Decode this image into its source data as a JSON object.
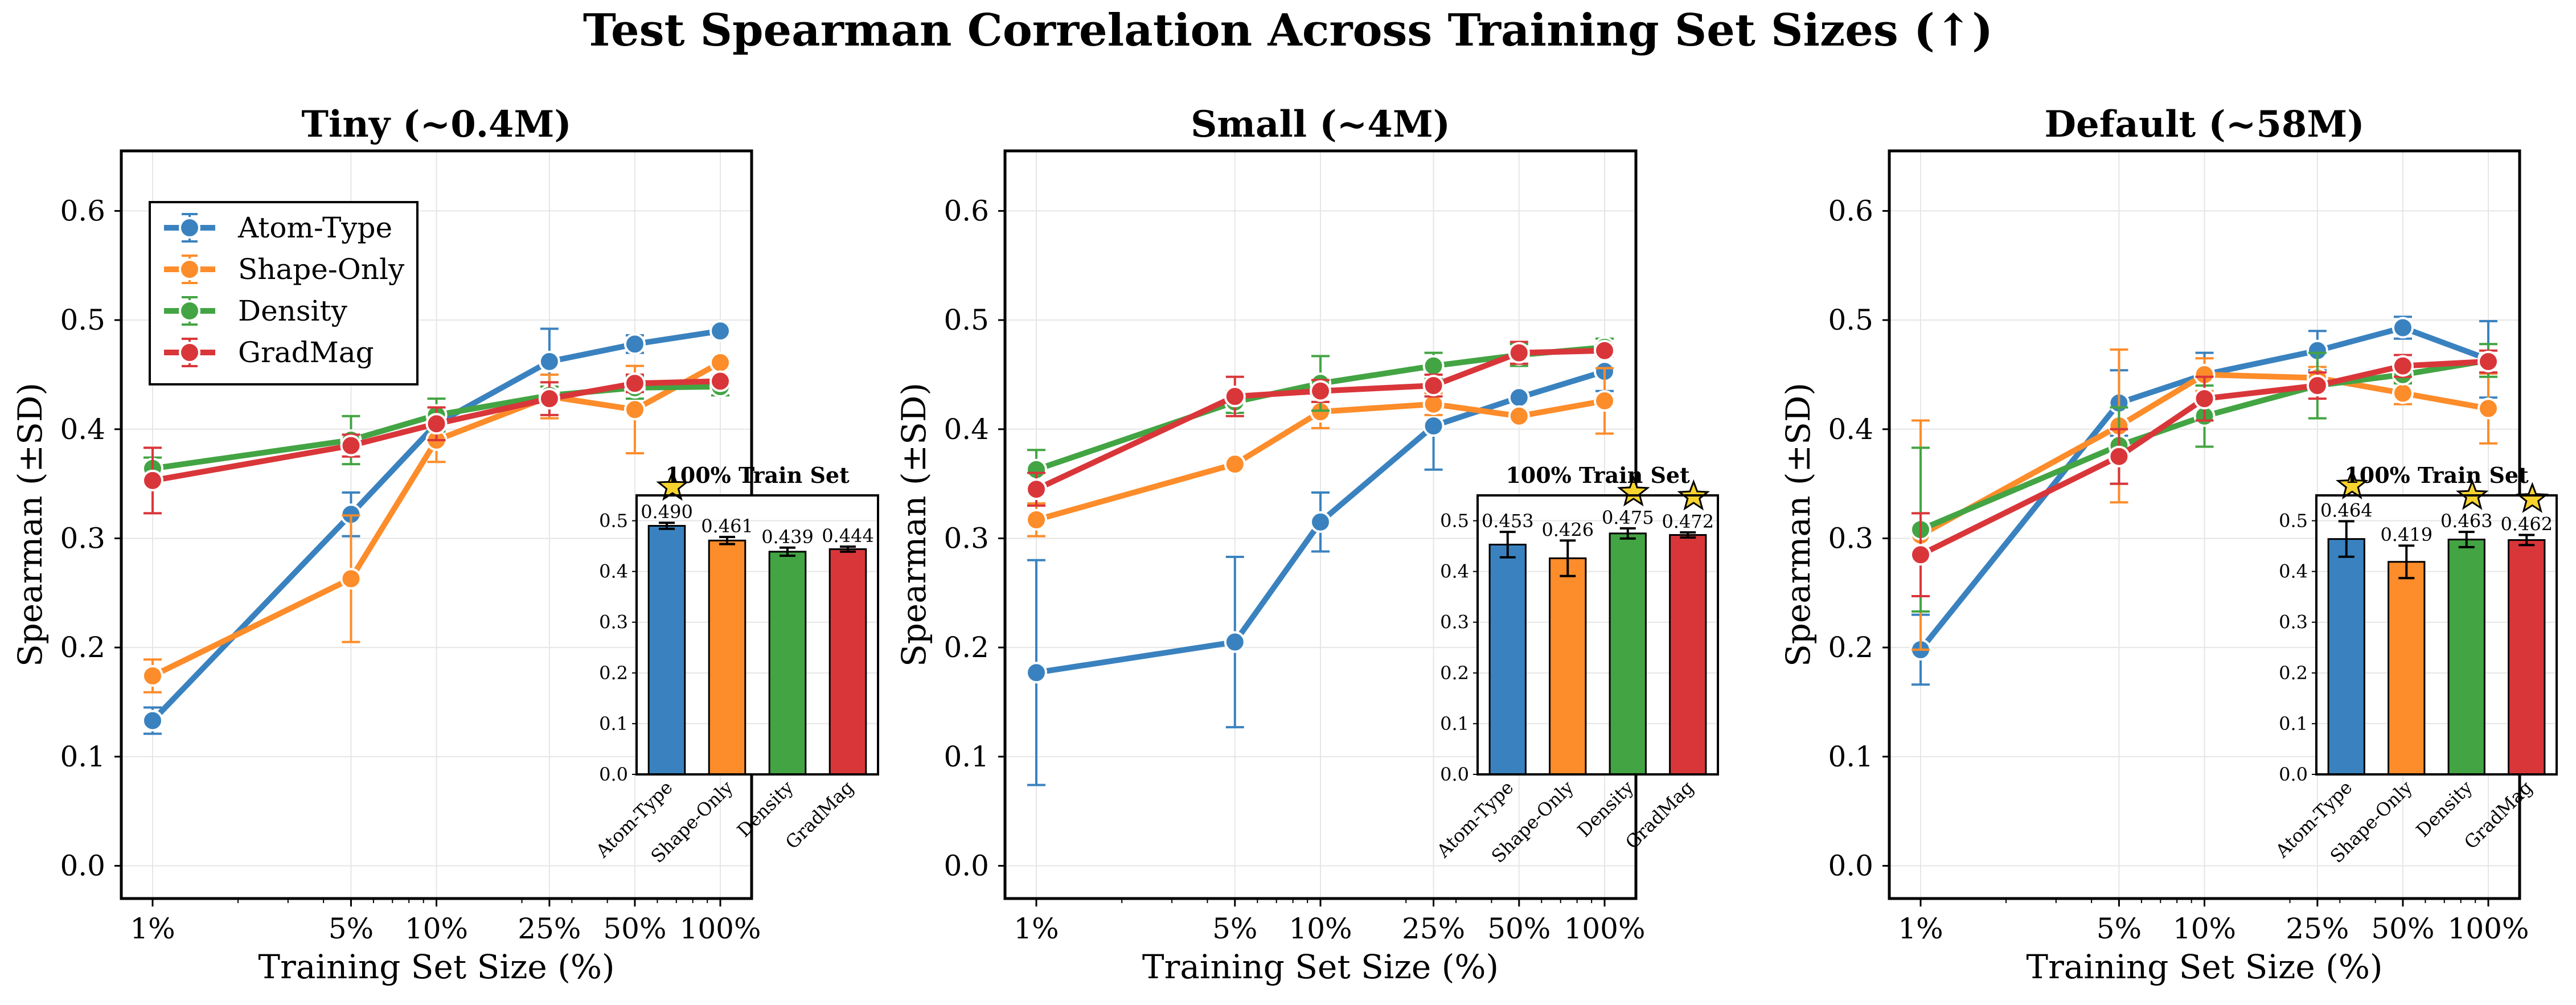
{
  "figure": {
    "title": "Test Spearman Correlation Across Training Set Sizes (↑)"
  },
  "colors": {
    "Atom-Type": "#3a82bf",
    "Shape-Only": "#fd8c2a",
    "Density": "#43a443",
    "GradMag": "#d9363a",
    "star": "#f7d32e"
  },
  "chart_data": [
    {
      "type": "line",
      "title": "Tiny (~0.4M)",
      "xlabel": "Training Set Size (%)",
      "ylabel": "Spearman (±SD)",
      "xscale": "log",
      "x": [
        1,
        5,
        10,
        25,
        50,
        100
      ],
      "xticklabels": [
        "1%",
        "5%",
        "10%",
        "25%",
        "50%",
        "100%"
      ],
      "ylim": [
        -0.03,
        0.655
      ],
      "yticks": [
        "0.0",
        "0.1",
        "0.2",
        "0.3",
        "0.4",
        "0.5",
        "0.6"
      ],
      "legend": "upper-left",
      "series": [
        {
          "name": "Atom-Type",
          "values": [
            0.133,
            0.322,
            0.405,
            0.462,
            0.478,
            0.49
          ],
          "sd": [
            0.012,
            0.02,
            0.015,
            0.03,
            0.008,
            0.005
          ]
        },
        {
          "name": "Shape-Only",
          "values": [
            0.174,
            0.263,
            0.39,
            0.43,
            0.418,
            0.461
          ],
          "sd": [
            0.015,
            0.058,
            0.02,
            0.02,
            0.04,
            0.005
          ]
        },
        {
          "name": "Density",
          "values": [
            0.364,
            0.39,
            0.413,
            0.431,
            0.438,
            0.439
          ],
          "sd": [
            0.01,
            0.022,
            0.015,
            0.008,
            0.01,
            0.008
          ]
        },
        {
          "name": "GradMag",
          "values": [
            0.353,
            0.385,
            0.405,
            0.428,
            0.442,
            0.444
          ],
          "sd": [
            0.03,
            0.01,
            0.015,
            0.015,
            0.008,
            0.005
          ]
        }
      ],
      "inset": {
        "title": "100% Train Set",
        "categories": [
          "Atom-Type",
          "Shape-Only",
          "Density",
          "GradMag"
        ],
        "values": [
          0.49,
          0.461,
          0.439,
          0.444
        ],
        "labels": [
          "0.490",
          "0.461",
          "0.439",
          "0.444"
        ],
        "sd": [
          0.006,
          0.007,
          0.008,
          0.005
        ],
        "best": [
          true,
          false,
          false,
          false
        ],
        "ylim": [
          0,
          0.55
        ],
        "yticks": [
          "0.0",
          "0.1",
          "0.2",
          "0.3",
          "0.4",
          "0.5"
        ]
      }
    },
    {
      "type": "line",
      "title": "Small (~4M)",
      "xlabel": "Training Set Size (%)",
      "ylabel": "Spearman (±SD)",
      "xscale": "log",
      "x": [
        1,
        5,
        10,
        25,
        50,
        100
      ],
      "xticklabels": [
        "1%",
        "5%",
        "10%",
        "25%",
        "50%",
        "100%"
      ],
      "ylim": [
        -0.03,
        0.655
      ],
      "yticks": [
        "0.0",
        "0.1",
        "0.2",
        "0.3",
        "0.4",
        "0.5",
        "0.6"
      ],
      "series": [
        {
          "name": "Atom-Type",
          "values": [
            0.177,
            0.205,
            0.315,
            0.403,
            0.429,
            0.453
          ],
          "sd": [
            0.103,
            0.078,
            0.027,
            0.04,
            0.005,
            0.018
          ]
        },
        {
          "name": "Shape-Only",
          "values": [
            0.317,
            0.368,
            0.416,
            0.423,
            0.412,
            0.426
          ],
          "sd": [
            0.015,
            0.005,
            0.015,
            0.01,
            0.005,
            0.03
          ]
        },
        {
          "name": "Density",
          "values": [
            0.363,
            0.425,
            0.442,
            0.458,
            0.468,
            0.475
          ],
          "sd": [
            0.018,
            0.01,
            0.025,
            0.012,
            0.01,
            0.008
          ]
        },
        {
          "name": "GradMag",
          "values": [
            0.345,
            0.43,
            0.435,
            0.44,
            0.47,
            0.472
          ],
          "sd": [
            0.015,
            0.018,
            0.01,
            0.01,
            0.01,
            0.005
          ]
        }
      ],
      "inset": {
        "title": "100% Train Set",
        "categories": [
          "Atom-Type",
          "Shape-Only",
          "Density",
          "GradMag"
        ],
        "values": [
          0.453,
          0.426,
          0.475,
          0.472
        ],
        "labels": [
          "0.453",
          "0.426",
          "0.475",
          "0.472"
        ],
        "sd": [
          0.025,
          0.035,
          0.01,
          0.005
        ],
        "best": [
          false,
          false,
          true,
          true
        ],
        "ylim": [
          0,
          0.55
        ],
        "yticks": [
          "0.0",
          "0.1",
          "0.2",
          "0.3",
          "0.4",
          "0.5"
        ]
      }
    },
    {
      "type": "line",
      "title": "Default (~58M)",
      "xlabel": "Training Set Size (%)",
      "ylabel": "Spearman (±SD)",
      "xscale": "log",
      "x": [
        1,
        5,
        10,
        25,
        50,
        100
      ],
      "xticklabels": [
        "1%",
        "5%",
        "10%",
        "25%",
        "50%",
        "100%"
      ],
      "ylim": [
        -0.03,
        0.655
      ],
      "yticks": [
        "0.0",
        "0.1",
        "0.2",
        "0.3",
        "0.4",
        "0.5",
        "0.6"
      ],
      "series": [
        {
          "name": "Atom-Type",
          "values": [
            0.198,
            0.424,
            0.45,
            0.472,
            0.493,
            0.464
          ],
          "sd": [
            0.032,
            0.03,
            0.02,
            0.018,
            0.01,
            0.035
          ]
        },
        {
          "name": "Shape-Only",
          "values": [
            0.303,
            0.403,
            0.45,
            0.447,
            0.433,
            0.419
          ],
          "sd": [
            0.105,
            0.07,
            0.015,
            0.01,
            0.01,
            0.032
          ]
        },
        {
          "name": "Density",
          "values": [
            0.308,
            0.385,
            0.412,
            0.44,
            0.45,
            0.463
          ],
          "sd": [
            0.075,
            0.035,
            0.028,
            0.03,
            0.008,
            0.015
          ]
        },
        {
          "name": "GradMag",
          "values": [
            0.285,
            0.375,
            0.428,
            0.44,
            0.458,
            0.462
          ],
          "sd": [
            0.038,
            0.025,
            0.02,
            0.012,
            0.01,
            0.01
          ]
        }
      ],
      "inset": {
        "title": "100% Train Set",
        "categories": [
          "Atom-Type",
          "Shape-Only",
          "Density",
          "GradMag"
        ],
        "values": [
          0.464,
          0.419,
          0.463,
          0.462
        ],
        "labels": [
          "0.464",
          "0.419",
          "0.463",
          "0.462"
        ],
        "sd": [
          0.035,
          0.032,
          0.015,
          0.01
        ],
        "best": [
          true,
          false,
          true,
          true
        ],
        "ylim": [
          0,
          0.55
        ],
        "yticks": [
          "0.0",
          "0.1",
          "0.2",
          "0.3",
          "0.4",
          "0.5"
        ]
      }
    }
  ]
}
